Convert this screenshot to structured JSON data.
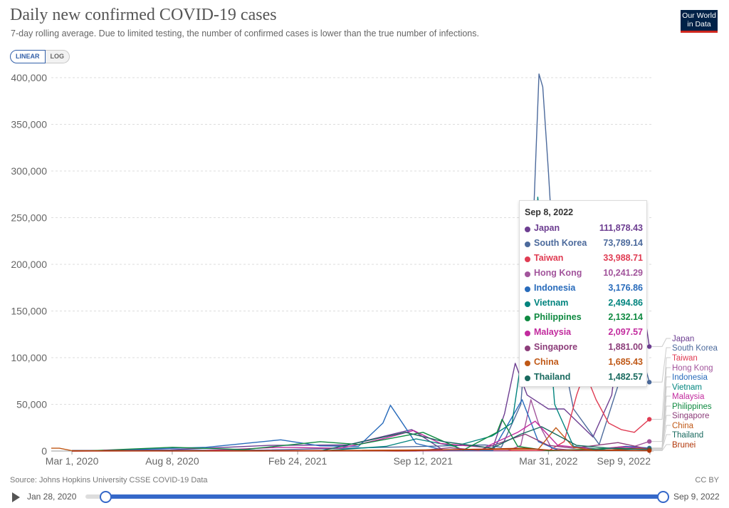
{
  "title": "Daily new confirmed COVID-19 cases",
  "subtitle": "7-day rolling average. Due to limited testing, the number of confirmed cases is lower than the true number of infections.",
  "logo": "Our World in Data",
  "scale_toggle": {
    "linear": "LINEAR",
    "log": "LOG",
    "selected": "LINEAR"
  },
  "source": "Source: Johns Hopkins University CSSE COVID-19 Data",
  "license": "CC BY",
  "timeline": {
    "start": "Jan 28, 2020",
    "end": "Sep 9, 2022"
  },
  "tooltip": {
    "date": "Sep 8, 2022",
    "rows": [
      {
        "name": "Japan",
        "value": "111,878.43",
        "color": "#6d3e91"
      },
      {
        "name": "South Korea",
        "value": "73,789.14",
        "color": "#4c6a9c"
      },
      {
        "name": "Taiwan",
        "value": "33,988.71",
        "color": "#e03c53"
      },
      {
        "name": "Hong Kong",
        "value": "10,241.29",
        "color": "#a2559c"
      },
      {
        "name": "Indonesia",
        "value": "3,176.86",
        "color": "#286bbb"
      },
      {
        "name": "Vietnam",
        "value": "2,494.86",
        "color": "#00847e"
      },
      {
        "name": "Philippines",
        "value": "2,132.14",
        "color": "#0f8a41"
      },
      {
        "name": "Malaysia",
        "value": "2,097.57",
        "color": "#c22b9e"
      },
      {
        "name": "Singapore",
        "value": "1,881.00",
        "color": "#8c3d7a"
      },
      {
        "name": "China",
        "value": "1,685.43",
        "color": "#c05917"
      },
      {
        "name": "Thailand",
        "value": "1,482.57",
        "color": "#18695e"
      }
    ]
  },
  "chart_data": {
    "type": "line",
    "title": "Daily new confirmed COVID-19 cases",
    "y_scale": "linear",
    "ylim": [
      0,
      400000
    ],
    "yticks": [
      0,
      50000,
      100000,
      150000,
      200000,
      250000,
      300000,
      350000,
      400000
    ],
    "ytick_labels": [
      "0",
      "50,000",
      "100,000",
      "150,000",
      "200,000",
      "250,000",
      "300,000",
      "350,000",
      "400,000"
    ],
    "xlim": [
      "2020-01-28",
      "2022-09-09"
    ],
    "xticks": [
      "2020-03-01",
      "2020-08-08",
      "2021-02-24",
      "2021-09-12",
      "2022-03-31",
      "2022-09-09"
    ],
    "xtick_labels": [
      "Mar 1, 2020",
      "Aug 8, 2020",
      "Feb 24, 2021",
      "Sep 12, 2021",
      "Mar 31, 2022",
      "Sep 9, 2022"
    ],
    "grid": "horizontal dashed",
    "legend": "end-of-line labels, right",
    "end_labels": [
      "Japan",
      "South Korea",
      "Taiwan",
      "Hong Kong",
      "Indonesia",
      "Vietnam",
      "Malaysia",
      "Philippines",
      "Singapore",
      "China",
      "Thailand",
      "Brunei"
    ],
    "series": [
      {
        "name": "Japan",
        "color": "#6d3e91",
        "points": [
          [
            "2020-04-10",
            500
          ],
          [
            "2020-08-05",
            1300
          ],
          [
            "2021-01-10",
            6000
          ],
          [
            "2021-05-15",
            6500
          ],
          [
            "2021-08-25",
            23000
          ],
          [
            "2021-10-15",
            500
          ],
          [
            "2021-12-31",
            1000
          ],
          [
            "2022-01-20",
            40000
          ],
          [
            "2022-02-06",
            94000
          ],
          [
            "2022-02-25",
            60000
          ],
          [
            "2022-03-31",
            45000
          ],
          [
            "2022-04-25",
            45000
          ],
          [
            "2022-06-10",
            15000
          ],
          [
            "2022-07-10",
            60000
          ],
          [
            "2022-08-05",
            200000
          ],
          [
            "2022-08-25",
            175000
          ],
          [
            "2022-09-08",
            111878
          ]
        ]
      },
      {
        "name": "South Korea",
        "color": "#4c6a9c",
        "points": [
          [
            "2020-03-01",
            600
          ],
          [
            "2021-01-01",
            1000
          ],
          [
            "2021-12-20",
            6500
          ],
          [
            "2022-01-15",
            4000
          ],
          [
            "2022-02-15",
            50000
          ],
          [
            "2022-03-05",
            210000
          ],
          [
            "2022-03-16",
            404000
          ],
          [
            "2022-03-22",
            390000
          ],
          [
            "2022-03-31",
            300000
          ],
          [
            "2022-04-15",
            130000
          ],
          [
            "2022-05-10",
            45000
          ],
          [
            "2022-06-20",
            7000
          ],
          [
            "2022-07-20",
            70000
          ],
          [
            "2022-08-20",
            120000
          ],
          [
            "2022-09-08",
            73789
          ]
        ]
      },
      {
        "name": "Taiwan",
        "color": "#e03c53",
        "points": [
          [
            "2020-03-01",
            0
          ],
          [
            "2021-05-25",
            500
          ],
          [
            "2021-08-01",
            20
          ],
          [
            "2022-04-01",
            500
          ],
          [
            "2022-04-25",
            10000
          ],
          [
            "2022-05-15",
            60000
          ],
          [
            "2022-05-28",
            85000
          ],
          [
            "2022-06-15",
            55000
          ],
          [
            "2022-07-05",
            30000
          ],
          [
            "2022-07-25",
            23000
          ],
          [
            "2022-08-15",
            20000
          ],
          [
            "2022-09-08",
            33989
          ]
        ]
      },
      {
        "name": "Hong Kong",
        "color": "#a2559c",
        "points": [
          [
            "2020-03-01",
            0
          ],
          [
            "2022-01-25",
            200
          ],
          [
            "2022-02-15",
            6000
          ],
          [
            "2022-03-03",
            55000
          ],
          [
            "2022-03-15",
            30000
          ],
          [
            "2022-04-05",
            3000
          ],
          [
            "2022-05-15",
            300
          ],
          [
            "2022-07-15",
            3000
          ],
          [
            "2022-08-15",
            5000
          ],
          [
            "2022-09-08",
            10241
          ]
        ]
      },
      {
        "name": "Indonesia",
        "color": "#286bbb",
        "points": [
          [
            "2020-04-01",
            200
          ],
          [
            "2020-10-01",
            4000
          ],
          [
            "2021-01-28",
            12000
          ],
          [
            "2021-04-01",
            5500
          ],
          [
            "2021-06-01",
            5000
          ],
          [
            "2021-07-10",
            30000
          ],
          [
            "2021-07-22",
            49000
          ],
          [
            "2021-08-10",
            30000
          ],
          [
            "2021-09-01",
            8000
          ],
          [
            "2021-10-15",
            1000
          ],
          [
            "2022-01-01",
            300
          ],
          [
            "2022-02-17",
            55000
          ],
          [
            "2022-03-15",
            10000
          ],
          [
            "2022-04-15",
            1000
          ],
          [
            "2022-06-15",
            1500
          ],
          [
            "2022-08-01",
            5000
          ],
          [
            "2022-09-08",
            3177
          ]
        ]
      },
      {
        "name": "Vietnam",
        "color": "#00847e",
        "points": [
          [
            "2021-04-01",
            50
          ],
          [
            "2021-07-15",
            5000
          ],
          [
            "2021-09-01",
            13000
          ],
          [
            "2021-11-01",
            5000
          ],
          [
            "2021-12-31",
            16000
          ],
          [
            "2022-02-01",
            30000
          ],
          [
            "2022-03-10",
            200000
          ],
          [
            "2022-03-14",
            272000
          ],
          [
            "2022-03-20",
            230000
          ],
          [
            "2022-04-10",
            50000
          ],
          [
            "2022-05-10",
            5000
          ],
          [
            "2022-07-01",
            1000
          ],
          [
            "2022-09-08",
            2495
          ]
        ]
      },
      {
        "name": "Malaysia",
        "color": "#c22b9e",
        "points": [
          [
            "2020-10-01",
            500
          ],
          [
            "2021-01-28",
            4000
          ],
          [
            "2021-05-01",
            3000
          ],
          [
            "2021-06-01",
            7000
          ],
          [
            "2021-07-15",
            14000
          ],
          [
            "2021-08-28",
            22000
          ],
          [
            "2021-10-10",
            8000
          ],
          [
            "2021-12-20",
            4000
          ],
          [
            "2022-02-10",
            20000
          ],
          [
            "2022-03-10",
            32000
          ],
          [
            "2022-04-15",
            6000
          ],
          [
            "2022-06-15",
            2000
          ],
          [
            "2022-07-25",
            4500
          ],
          [
            "2022-09-08",
            2098
          ]
        ]
      },
      {
        "name": "Philippines",
        "color": "#0f8a41",
        "points": [
          [
            "2020-04-01",
            300
          ],
          [
            "2020-08-08",
            4000
          ],
          [
            "2020-12-01",
            1500
          ],
          [
            "2021-04-01",
            10000
          ],
          [
            "2021-06-01",
            7000
          ],
          [
            "2021-09-12",
            20000
          ],
          [
            "2021-11-15",
            1000
          ],
          [
            "2022-01-08",
            20000
          ],
          [
            "2022-01-16",
            34000
          ],
          [
            "2022-02-10",
            5000
          ],
          [
            "2022-03-31",
            300
          ],
          [
            "2022-07-15",
            3000
          ],
          [
            "2022-09-08",
            2132
          ]
        ]
      },
      {
        "name": "Singapore",
        "color": "#8c3d7a",
        "points": [
          [
            "2020-04-20",
            800
          ],
          [
            "2020-08-01",
            100
          ],
          [
            "2021-09-01",
            100
          ],
          [
            "2021-10-25",
            3500
          ],
          [
            "2021-12-10",
            800
          ],
          [
            "2022-02-22",
            18000
          ],
          [
            "2022-03-31",
            6000
          ],
          [
            "2022-05-10",
            3000
          ],
          [
            "2022-07-20",
            9000
          ],
          [
            "2022-09-08",
            1881
          ]
        ]
      },
      {
        "name": "China",
        "color": "#c05917",
        "points": [
          [
            "2020-01-28",
            3000
          ],
          [
            "2020-02-10",
            3000
          ],
          [
            "2020-03-01",
            300
          ],
          [
            "2021-01-01",
            100
          ],
          [
            "2022-03-15",
            2000
          ],
          [
            "2022-04-12",
            25000
          ],
          [
            "2022-05-10",
            4000
          ],
          [
            "2022-06-15",
            300
          ],
          [
            "2022-08-20",
            2500
          ],
          [
            "2022-09-08",
            1685
          ]
        ]
      },
      {
        "name": "Thailand",
        "color": "#18695e",
        "points": [
          [
            "2021-04-01",
            100
          ],
          [
            "2021-08-15",
            20000
          ],
          [
            "2021-10-15",
            10000
          ],
          [
            "2021-12-31",
            3000
          ],
          [
            "2022-02-15",
            18000
          ],
          [
            "2022-03-20",
            26000
          ],
          [
            "2022-05-15",
            6000
          ],
          [
            "2022-07-15",
            2500
          ],
          [
            "2022-09-08",
            1483
          ]
        ]
      },
      {
        "name": "Brunei",
        "color": "#b13507",
        "points": [
          [
            "2020-03-01",
            0
          ],
          [
            "2021-08-15",
            300
          ],
          [
            "2022-02-20",
            3000
          ],
          [
            "2022-04-01",
            1000
          ],
          [
            "2022-09-08",
            400
          ]
        ]
      }
    ]
  }
}
